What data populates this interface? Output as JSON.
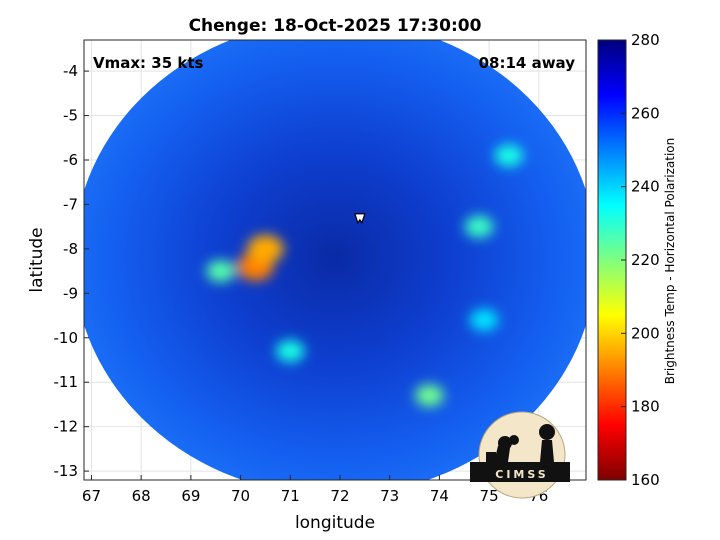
{
  "chart_data": {
    "type": "heatmap",
    "title": "Chenge: 18-Oct-2025 17:30:00",
    "xlabel": "longitude",
    "ylabel": "latitude",
    "xlim": [
      66.85,
      76.95
    ],
    "ylim": [
      -13.2,
      -3.3
    ],
    "xticks": [
      "67",
      "68",
      "69",
      "70",
      "71",
      "72",
      "73",
      "74",
      "75",
      "76"
    ],
    "yticks": [
      "-4",
      "-5",
      "-6",
      "-7",
      "-8",
      "-9",
      "-10",
      "-11",
      "-12",
      "-13"
    ],
    "grid": true,
    "annotations": {
      "left": "Vmax: 35 kts",
      "right": "08:14 away"
    },
    "center_marker": {
      "lon": 72.4,
      "lat": -7.3
    },
    "colorbar": {
      "label": "Brightness Temp - Horizontal Polarization",
      "min": 160,
      "max": 280,
      "ticks": [
        "160",
        "180",
        "200",
        "220",
        "240",
        "260",
        "280"
      ],
      "colormap": "jet"
    },
    "swath": {
      "center_lon": 71.9,
      "center_lat": -8.2,
      "radius_deg": 5.4
    },
    "warm_features": [
      {
        "lon": 70.3,
        "lat": -8.4,
        "value": 190
      },
      {
        "lon": 70.5,
        "lat": -8.0,
        "value": 195
      },
      {
        "lon": 69.6,
        "lat": -8.5,
        "value": 225
      },
      {
        "lon": 71.0,
        "lat": -10.3,
        "value": 232
      },
      {
        "lon": 73.8,
        "lat": -11.3,
        "value": 222
      },
      {
        "lon": 74.9,
        "lat": -9.6,
        "value": 238
      },
      {
        "lon": 74.8,
        "lat": -7.5,
        "value": 228
      },
      {
        "lon": 75.4,
        "lat": -5.9,
        "value": 232
      }
    ]
  },
  "logo": {
    "text": "CIMSS"
  }
}
